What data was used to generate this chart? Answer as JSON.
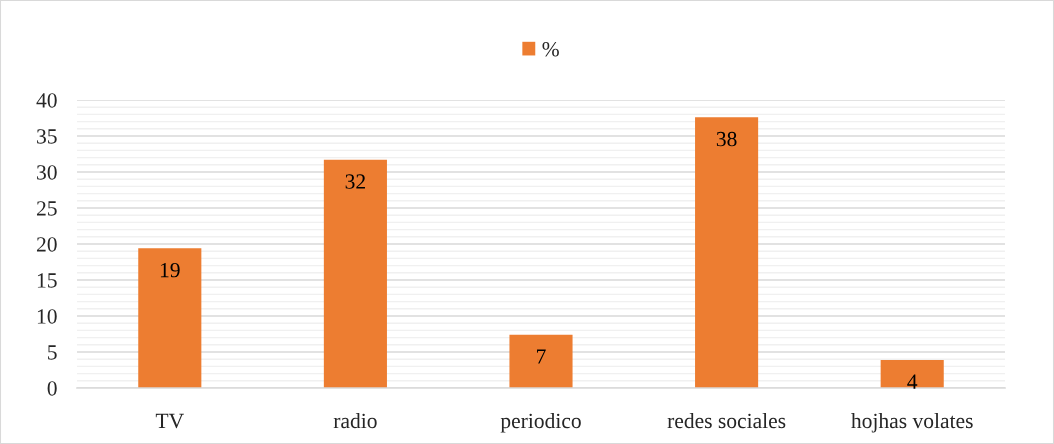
{
  "chart_data": {
    "type": "bar",
    "categories": [
      "TV",
      "radio",
      "periodico",
      "redes sociales",
      "hojhas volates"
    ],
    "series": [
      {
        "name": "%",
        "color": "#ed7d31",
        "values": [
          19.4,
          31.7,
          7.4,
          37.6,
          3.9
        ],
        "value_labels": [
          "19",
          "32",
          "7",
          "38",
          "4"
        ]
      }
    ],
    "ylim": [
      0,
      40
    ],
    "yticks": [
      0,
      5,
      10,
      15,
      20,
      25,
      30,
      35,
      40
    ],
    "grid": "y",
    "legend": "top"
  }
}
